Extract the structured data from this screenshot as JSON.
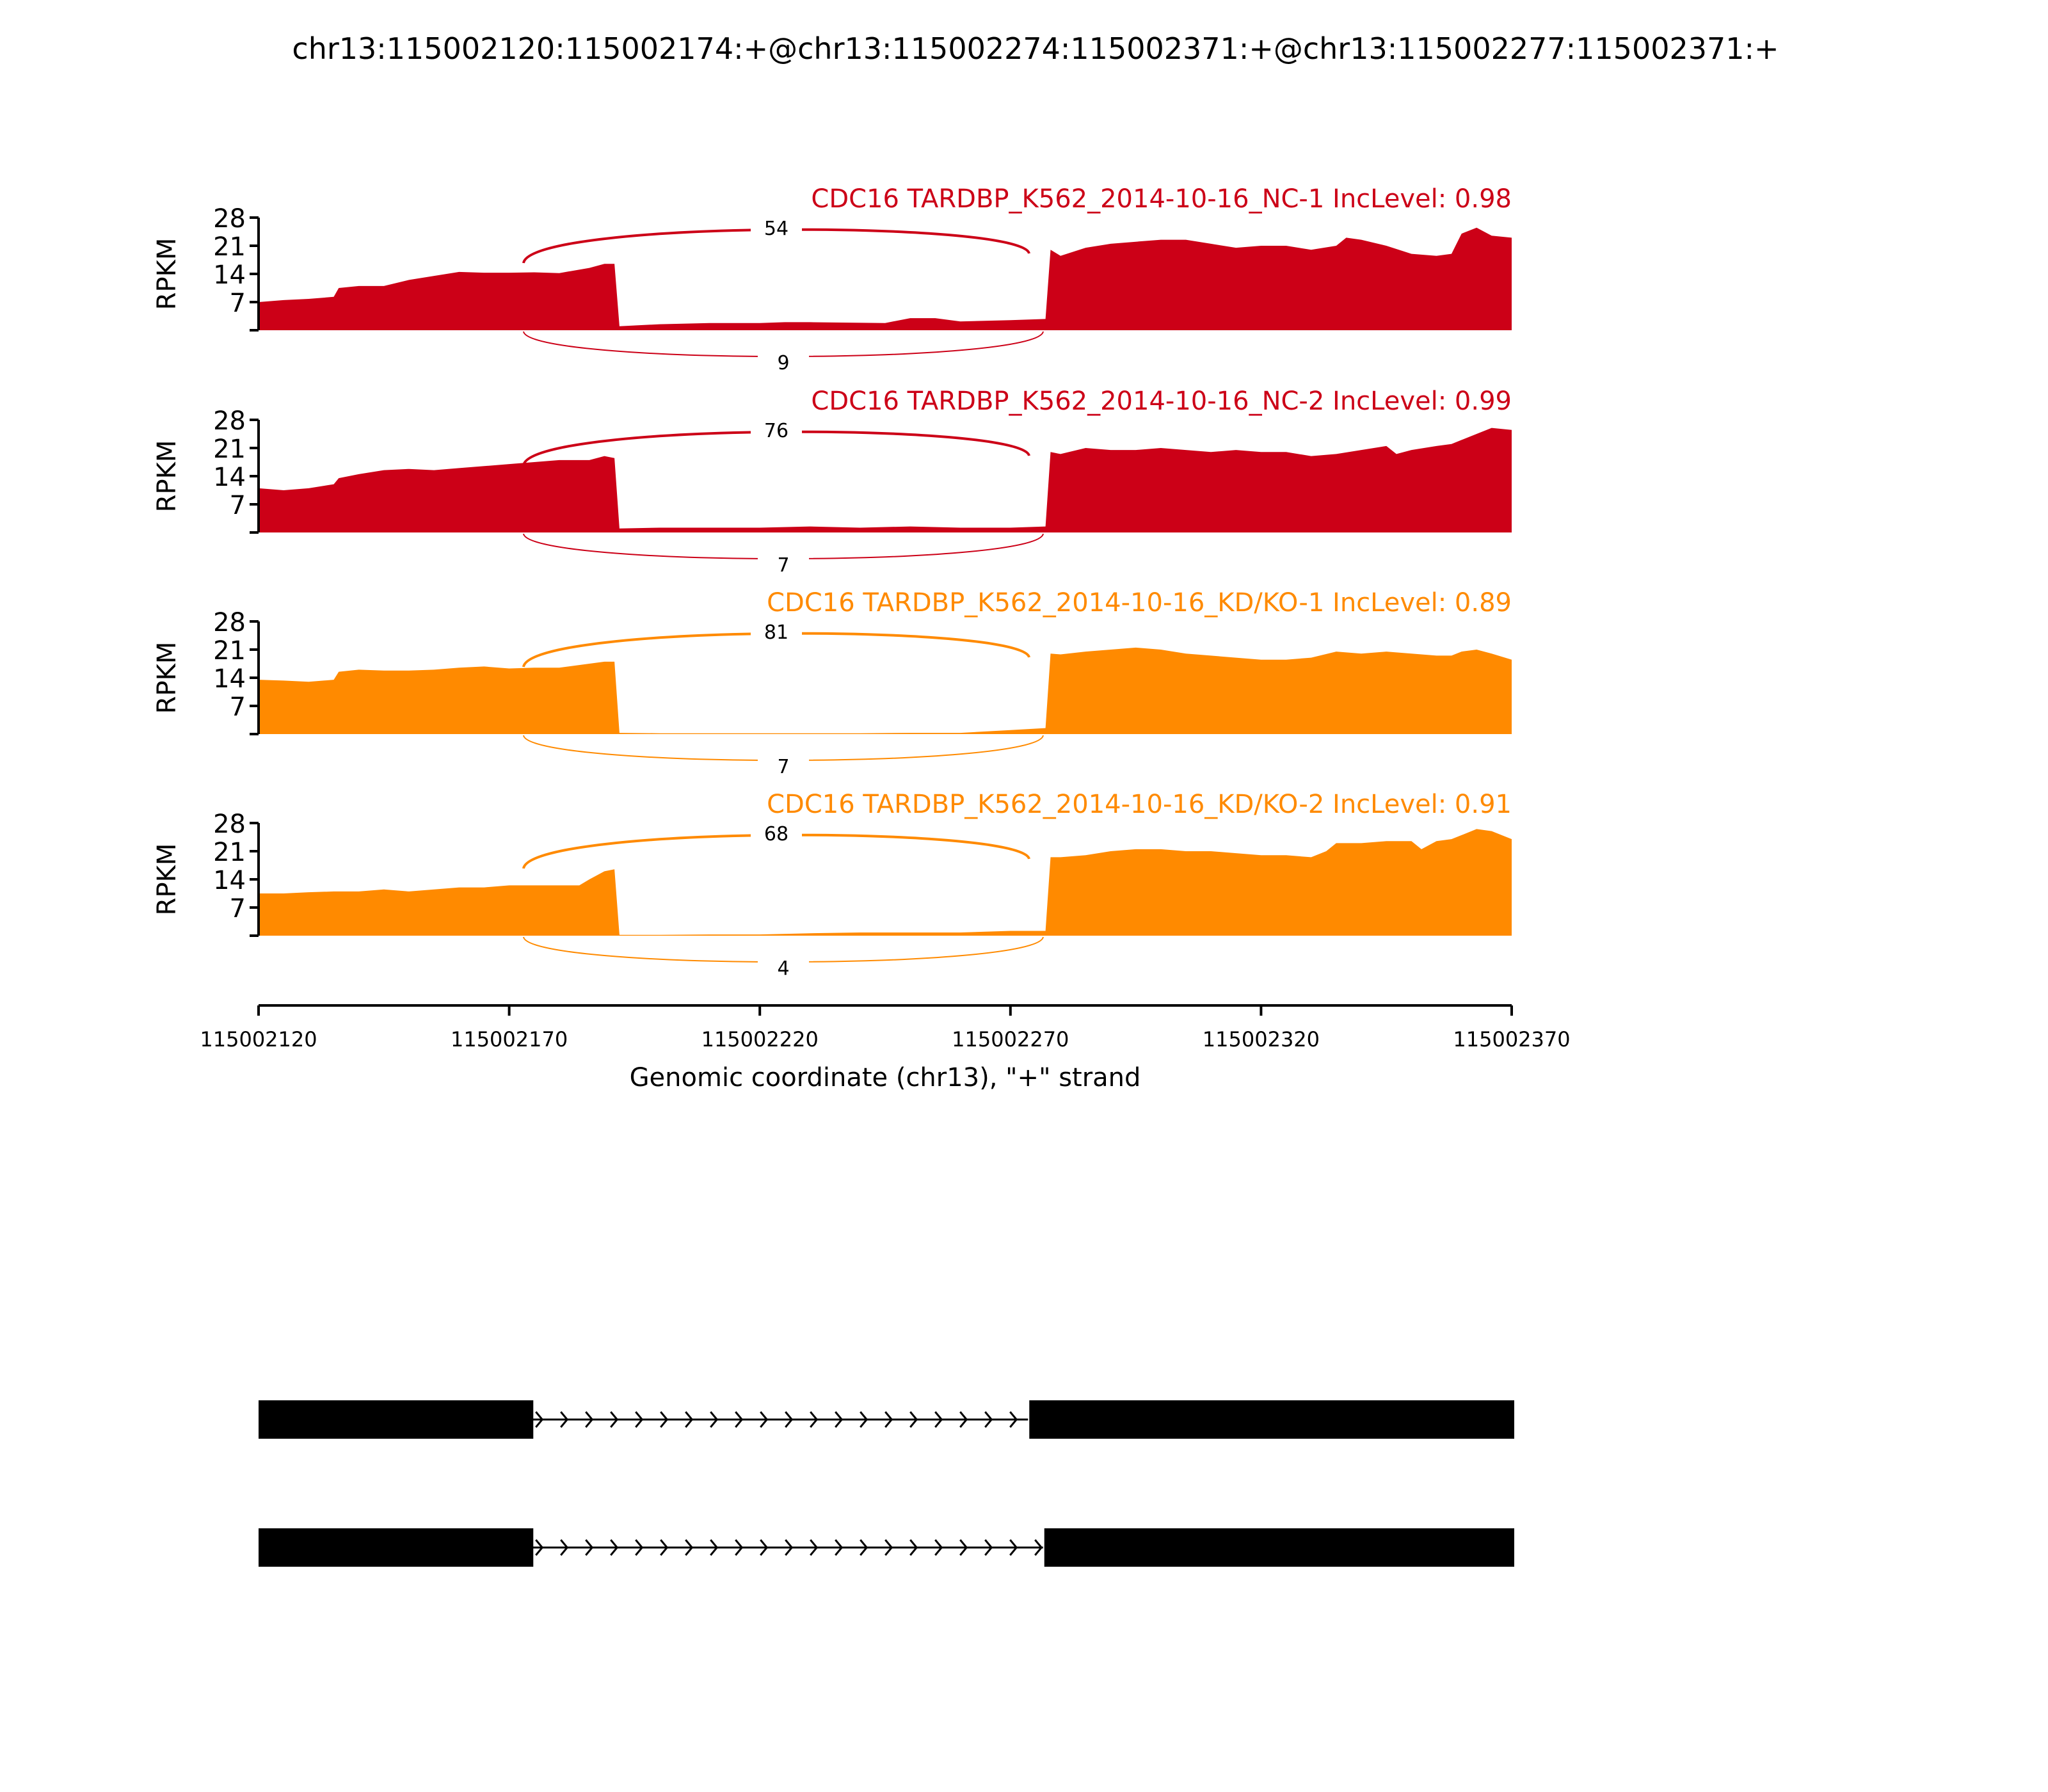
{
  "title": "chr13:115002120:115002174:+@chr13:115002274:115002371:+@chr13:115002277:115002371:+",
  "colors": {
    "nc": "#cc0017",
    "kd": "#ff8a00",
    "axis": "#000000",
    "exon": "#000000"
  },
  "chart_data": {
    "type": "area",
    "xlabel": "Genomic coordinate (chr13), \"+\" strand",
    "xlim": [
      115002120,
      115002370
    ],
    "xticks": [
      "115002120",
      "115002170",
      "115002220",
      "115002270",
      "115002320",
      "115002370"
    ],
    "ylabel": "RPKM",
    "ylim": [
      0,
      28
    ],
    "yticks": [
      "7",
      "14",
      "21",
      "28"
    ],
    "tracks": [
      {
        "label": "CDC16 TARDBP_K562_2014-10-16_NC-1 IncLevel: 0.98",
        "group": "nc",
        "coverage": [
          [
            115002120,
            7
          ],
          [
            115002125,
            7.5
          ],
          [
            115002130,
            7.8
          ],
          [
            115002135,
            8.3
          ],
          [
            115002136,
            10.5
          ],
          [
            115002140,
            11
          ],
          [
            115002145,
            11
          ],
          [
            115002150,
            12.5
          ],
          [
            115002155,
            13.5
          ],
          [
            115002160,
            14.5
          ],
          [
            115002165,
            14.3
          ],
          [
            115002170,
            14.3
          ],
          [
            115002175,
            14.4
          ],
          [
            115002180,
            14.2
          ],
          [
            115002186,
            15.5
          ],
          [
            115002189,
            16.5
          ],
          [
            115002191,
            16.5
          ],
          [
            115002192,
            1
          ],
          [
            115002200,
            1.5
          ],
          [
            115002210,
            1.8
          ],
          [
            115002220,
            1.8
          ],
          [
            115002225,
            2
          ],
          [
            115002230,
            2
          ],
          [
            115002245,
            1.8
          ],
          [
            115002250,
            3
          ],
          [
            115002255,
            3
          ],
          [
            115002260,
            2.2
          ],
          [
            115002270,
            2.5
          ],
          [
            115002277,
            2.8
          ],
          [
            115002278,
            20
          ],
          [
            115002280,
            18.5
          ],
          [
            115002285,
            20.5
          ],
          [
            115002290,
            21.5
          ],
          [
            115002295,
            22
          ],
          [
            115002300,
            22.5
          ],
          [
            115002305,
            22.5
          ],
          [
            115002310,
            21.5
          ],
          [
            115002315,
            20.5
          ],
          [
            115002320,
            21
          ],
          [
            115002325,
            21
          ],
          [
            115002330,
            20
          ],
          [
            115002335,
            21
          ],
          [
            115002337,
            23
          ],
          [
            115002340,
            22.5
          ],
          [
            115002345,
            21
          ],
          [
            115002350,
            19
          ],
          [
            115002355,
            18.5
          ],
          [
            115002358,
            19
          ],
          [
            115002360,
            24
          ],
          [
            115002363,
            25.5
          ],
          [
            115002366,
            23.5
          ],
          [
            115002370,
            23
          ]
        ],
        "junctions": [
          {
            "label": "54",
            "side": "above"
          },
          {
            "label": "9",
            "side": "below"
          }
        ]
      },
      {
        "label": "CDC16 TARDBP_K562_2014-10-16_NC-2 IncLevel: 0.99",
        "group": "nc",
        "coverage": [
          [
            115002120,
            11
          ],
          [
            115002125,
            10.5
          ],
          [
            115002130,
            11
          ],
          [
            115002135,
            12
          ],
          [
            115002136,
            13.5
          ],
          [
            115002140,
            14.5
          ],
          [
            115002145,
            15.5
          ],
          [
            115002150,
            15.8
          ],
          [
            115002155,
            15.5
          ],
          [
            115002160,
            16
          ],
          [
            115002165,
            16.5
          ],
          [
            115002170,
            17
          ],
          [
            115002175,
            17.5
          ],
          [
            115002180,
            18
          ],
          [
            115002186,
            18
          ],
          [
            115002189,
            19
          ],
          [
            115002191,
            18.5
          ],
          [
            115002192,
            1
          ],
          [
            115002200,
            1.2
          ],
          [
            115002210,
            1.2
          ],
          [
            115002220,
            1.2
          ],
          [
            115002230,
            1.5
          ],
          [
            115002240,
            1.2
          ],
          [
            115002250,
            1.5
          ],
          [
            115002260,
            1.2
          ],
          [
            115002270,
            1.2
          ],
          [
            115002277,
            1.5
          ],
          [
            115002278,
            20
          ],
          [
            115002280,
            19.5
          ],
          [
            115002285,
            21
          ],
          [
            115002290,
            20.5
          ],
          [
            115002295,
            20.5
          ],
          [
            115002300,
            21
          ],
          [
            115002305,
            20.5
          ],
          [
            115002310,
            20
          ],
          [
            115002315,
            20.5
          ],
          [
            115002320,
            20
          ],
          [
            115002325,
            20
          ],
          [
            115002330,
            19
          ],
          [
            115002335,
            19.5
          ],
          [
            115002340,
            20.5
          ],
          [
            115002345,
            21.5
          ],
          [
            115002347,
            19.5
          ],
          [
            115002350,
            20.5
          ],
          [
            115002355,
            21.5
          ],
          [
            115002358,
            22
          ],
          [
            115002360,
            23
          ],
          [
            115002363,
            24.5
          ],
          [
            115002366,
            26
          ],
          [
            115002370,
            25.5
          ]
        ],
        "junctions": [
          {
            "label": "76",
            "side": "above"
          },
          {
            "label": "7",
            "side": "below"
          }
        ]
      },
      {
        "label": "CDC16 TARDBP_K562_2014-10-16_KD/KO-1 IncLevel: 0.89",
        "group": "kd",
        "coverage": [
          [
            115002120,
            13.5
          ],
          [
            115002125,
            13.3
          ],
          [
            115002130,
            13
          ],
          [
            115002135,
            13.5
          ],
          [
            115002136,
            15.5
          ],
          [
            115002140,
            16
          ],
          [
            115002145,
            15.8
          ],
          [
            115002150,
            15.8
          ],
          [
            115002155,
            16
          ],
          [
            115002160,
            16.5
          ],
          [
            115002165,
            16.8
          ],
          [
            115002170,
            16.3
          ],
          [
            115002175,
            16.5
          ],
          [
            115002180,
            16.5
          ],
          [
            115002186,
            17.5
          ],
          [
            115002189,
            18
          ],
          [
            115002191,
            18
          ],
          [
            115002192,
            0.3
          ],
          [
            115002200,
            0.2
          ],
          [
            115002210,
            0.2
          ],
          [
            115002220,
            0.2
          ],
          [
            115002230,
            0.2
          ],
          [
            115002240,
            0.2
          ],
          [
            115002250,
            0.3
          ],
          [
            115002260,
            0.3
          ],
          [
            115002270,
            1
          ],
          [
            115002277,
            1.5
          ],
          [
            115002278,
            20
          ],
          [
            115002280,
            19.8
          ],
          [
            115002285,
            20.5
          ],
          [
            115002290,
            21
          ],
          [
            115002295,
            21.5
          ],
          [
            115002300,
            21
          ],
          [
            115002305,
            20
          ],
          [
            115002310,
            19.5
          ],
          [
            115002315,
            19
          ],
          [
            115002320,
            18.5
          ],
          [
            115002325,
            18.5
          ],
          [
            115002330,
            19
          ],
          [
            115002335,
            20.5
          ],
          [
            115002340,
            20
          ],
          [
            115002345,
            20.5
          ],
          [
            115002350,
            20
          ],
          [
            115002355,
            19.5
          ],
          [
            115002358,
            19.5
          ],
          [
            115002360,
            20.5
          ],
          [
            115002363,
            21
          ],
          [
            115002366,
            20
          ],
          [
            115002370,
            18.5
          ]
        ],
        "junctions": [
          {
            "label": "81",
            "side": "above"
          },
          {
            "label": "7",
            "side": "below"
          }
        ]
      },
      {
        "label": "CDC16 TARDBP_K562_2014-10-16_KD/KO-2 IncLevel: 0.91",
        "group": "kd",
        "coverage": [
          [
            115002120,
            10.5
          ],
          [
            115002125,
            10.5
          ],
          [
            115002130,
            10.8
          ],
          [
            115002135,
            11
          ],
          [
            115002140,
            11
          ],
          [
            115002145,
            11.5
          ],
          [
            115002150,
            11
          ],
          [
            115002155,
            11.5
          ],
          [
            115002160,
            12
          ],
          [
            115002165,
            12
          ],
          [
            115002170,
            12.5
          ],
          [
            115002175,
            12.5
          ],
          [
            115002180,
            12.5
          ],
          [
            115002184,
            12.5
          ],
          [
            115002186,
            14
          ],
          [
            115002189,
            16
          ],
          [
            115002191,
            16.5
          ],
          [
            115002192,
            0.2
          ],
          [
            115002200,
            0.2
          ],
          [
            115002210,
            0.3
          ],
          [
            115002220,
            0.3
          ],
          [
            115002230,
            0.6
          ],
          [
            115002240,
            0.8
          ],
          [
            115002250,
            0.8
          ],
          [
            115002260,
            0.8
          ],
          [
            115002270,
            1.2
          ],
          [
            115002277,
            1.2
          ],
          [
            115002278,
            19.5
          ],
          [
            115002280,
            19.5
          ],
          [
            115002285,
            20
          ],
          [
            115002290,
            21
          ],
          [
            115002295,
            21.5
          ],
          [
            115002300,
            21.5
          ],
          [
            115002305,
            21
          ],
          [
            115002310,
            21
          ],
          [
            115002315,
            20.5
          ],
          [
            115002320,
            20
          ],
          [
            115002325,
            20
          ],
          [
            115002330,
            19.5
          ],
          [
            115002333,
            21
          ],
          [
            115002335,
            23
          ],
          [
            115002340,
            23
          ],
          [
            115002345,
            23.5
          ],
          [
            115002350,
            23.5
          ],
          [
            115002352,
            21.5
          ],
          [
            115002355,
            23.5
          ],
          [
            115002358,
            24
          ],
          [
            115002360,
            25
          ],
          [
            115002363,
            26.5
          ],
          [
            115002366,
            26
          ],
          [
            115002370,
            24
          ]
        ],
        "junctions": [
          {
            "label": "68",
            "side": "above"
          },
          {
            "label": "4",
            "side": "below"
          }
        ]
      }
    ],
    "isoforms": [
      {
        "exons": [
          [
            115002120,
            115002174
          ],
          [
            115002274,
            115002371
          ]
        ]
      },
      {
        "exons": [
          [
            115002120,
            115002174
          ],
          [
            115002277,
            115002371
          ]
        ]
      }
    ]
  }
}
